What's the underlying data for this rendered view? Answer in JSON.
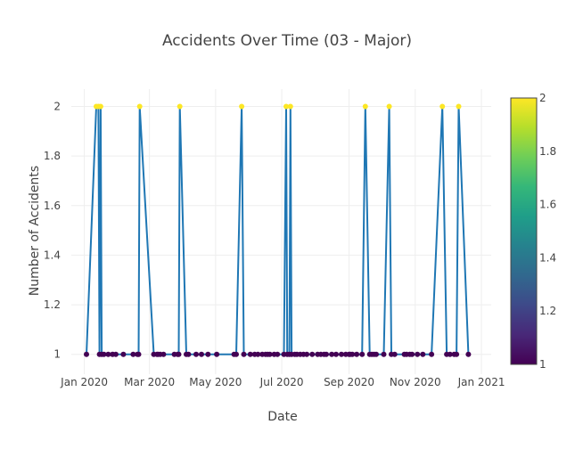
{
  "chart_data": {
    "type": "line",
    "title": "Accidents Over Time (03 - Major)",
    "xlabel": "Date",
    "ylabel": "Number of Accidents",
    "x_range": [
      "2019-12-20",
      "2021-01-10"
    ],
    "ylim": [
      0.92,
      2.07
    ],
    "x_ticks": [
      {
        "date": "2020-01-01",
        "label": "Jan 2020"
      },
      {
        "date": "2020-03-01",
        "label": "Mar 2020"
      },
      {
        "date": "2020-05-01",
        "label": "May 2020"
      },
      {
        "date": "2020-07-01",
        "label": "Jul 2020"
      },
      {
        "date": "2020-09-01",
        "label": "Sep 2020"
      },
      {
        "date": "2020-11-01",
        "label": "Nov 2020"
      },
      {
        "date": "2021-01-01",
        "label": "Jan 2021"
      }
    ],
    "y_ticks": [
      1,
      1.2,
      1.4,
      1.6,
      1.8,
      2
    ],
    "y_tick_labels": [
      "1",
      "1.2",
      "1.4",
      "1.6",
      "1.8",
      "2"
    ],
    "colorbar": {
      "min": 1,
      "max": 2,
      "ticks": [
        1,
        1.2,
        1.4,
        1.6,
        1.8,
        2
      ],
      "tick_labels": [
        "1",
        "1.2",
        "1.4",
        "1.6",
        "1.8",
        "2"
      ],
      "colorscale": "Viridis"
    },
    "line_color": "#1f77b4",
    "series": [
      {
        "name": "Accidents",
        "x": [
          "2020-01-03",
          "2020-01-12",
          "2020-01-14",
          "2020-01-15",
          "2020-01-16",
          "2020-01-17",
          "2020-01-19",
          "2020-01-23",
          "2020-01-27",
          "2020-01-30",
          "2020-02-06",
          "2020-02-15",
          "2020-02-19",
          "2020-02-20",
          "2020-02-21",
          "2020-03-05",
          "2020-03-08",
          "2020-03-09",
          "2020-03-11",
          "2020-03-14",
          "2020-03-24",
          "2020-03-27",
          "2020-03-28",
          "2020-03-29",
          "2020-04-04",
          "2020-04-06",
          "2020-04-13",
          "2020-04-18",
          "2020-04-24",
          "2020-05-02",
          "2020-05-18",
          "2020-05-20",
          "2020-05-25",
          "2020-05-27",
          "2020-06-02",
          "2020-06-06",
          "2020-06-09",
          "2020-06-13",
          "2020-06-16",
          "2020-06-18",
          "2020-06-20",
          "2020-06-24",
          "2020-06-27",
          "2020-07-03",
          "2020-07-05",
          "2020-07-06",
          "2020-07-08",
          "2020-07-09",
          "2020-07-10",
          "2020-07-13",
          "2020-07-15",
          "2020-07-18",
          "2020-07-21",
          "2020-07-24",
          "2020-07-29",
          "2020-08-03",
          "2020-08-06",
          "2020-08-09",
          "2020-08-11",
          "2020-08-16",
          "2020-08-20",
          "2020-08-25",
          "2020-08-29",
          "2020-09-01",
          "2020-09-02",
          "2020-09-04",
          "2020-09-08",
          "2020-09-13",
          "2020-09-16",
          "2020-09-20",
          "2020-09-22",
          "2020-09-24",
          "2020-09-26",
          "2020-10-03",
          "2020-10-08",
          "2020-10-10",
          "2020-10-13",
          "2020-10-22",
          "2020-10-24",
          "2020-10-27",
          "2020-10-29",
          "2020-11-03",
          "2020-11-08",
          "2020-11-16",
          "2020-11-26",
          "2020-11-30",
          "2020-12-03",
          "2020-12-07",
          "2020-12-09",
          "2020-12-11",
          "2020-12-20"
        ],
        "values": [
          1,
          2,
          2,
          1,
          2,
          1,
          1,
          1,
          1,
          1,
          1,
          1,
          1,
          1,
          2,
          1,
          1,
          1,
          1,
          1,
          1,
          1,
          1,
          2,
          1,
          1,
          1,
          1,
          1,
          1,
          1,
          1,
          2,
          1,
          1,
          1,
          1,
          1,
          1,
          1,
          1,
          1,
          1,
          1,
          2,
          1,
          1,
          2,
          1,
          1,
          1,
          1,
          1,
          1,
          1,
          1,
          1,
          1,
          1,
          1,
          1,
          1,
          1,
          1,
          1,
          1,
          1,
          1,
          2,
          1,
          1,
          1,
          1,
          1,
          2,
          1,
          1,
          1,
          1,
          1,
          1,
          1,
          1,
          1,
          2,
          1,
          1,
          1,
          1,
          2,
          1
        ]
      }
    ]
  }
}
